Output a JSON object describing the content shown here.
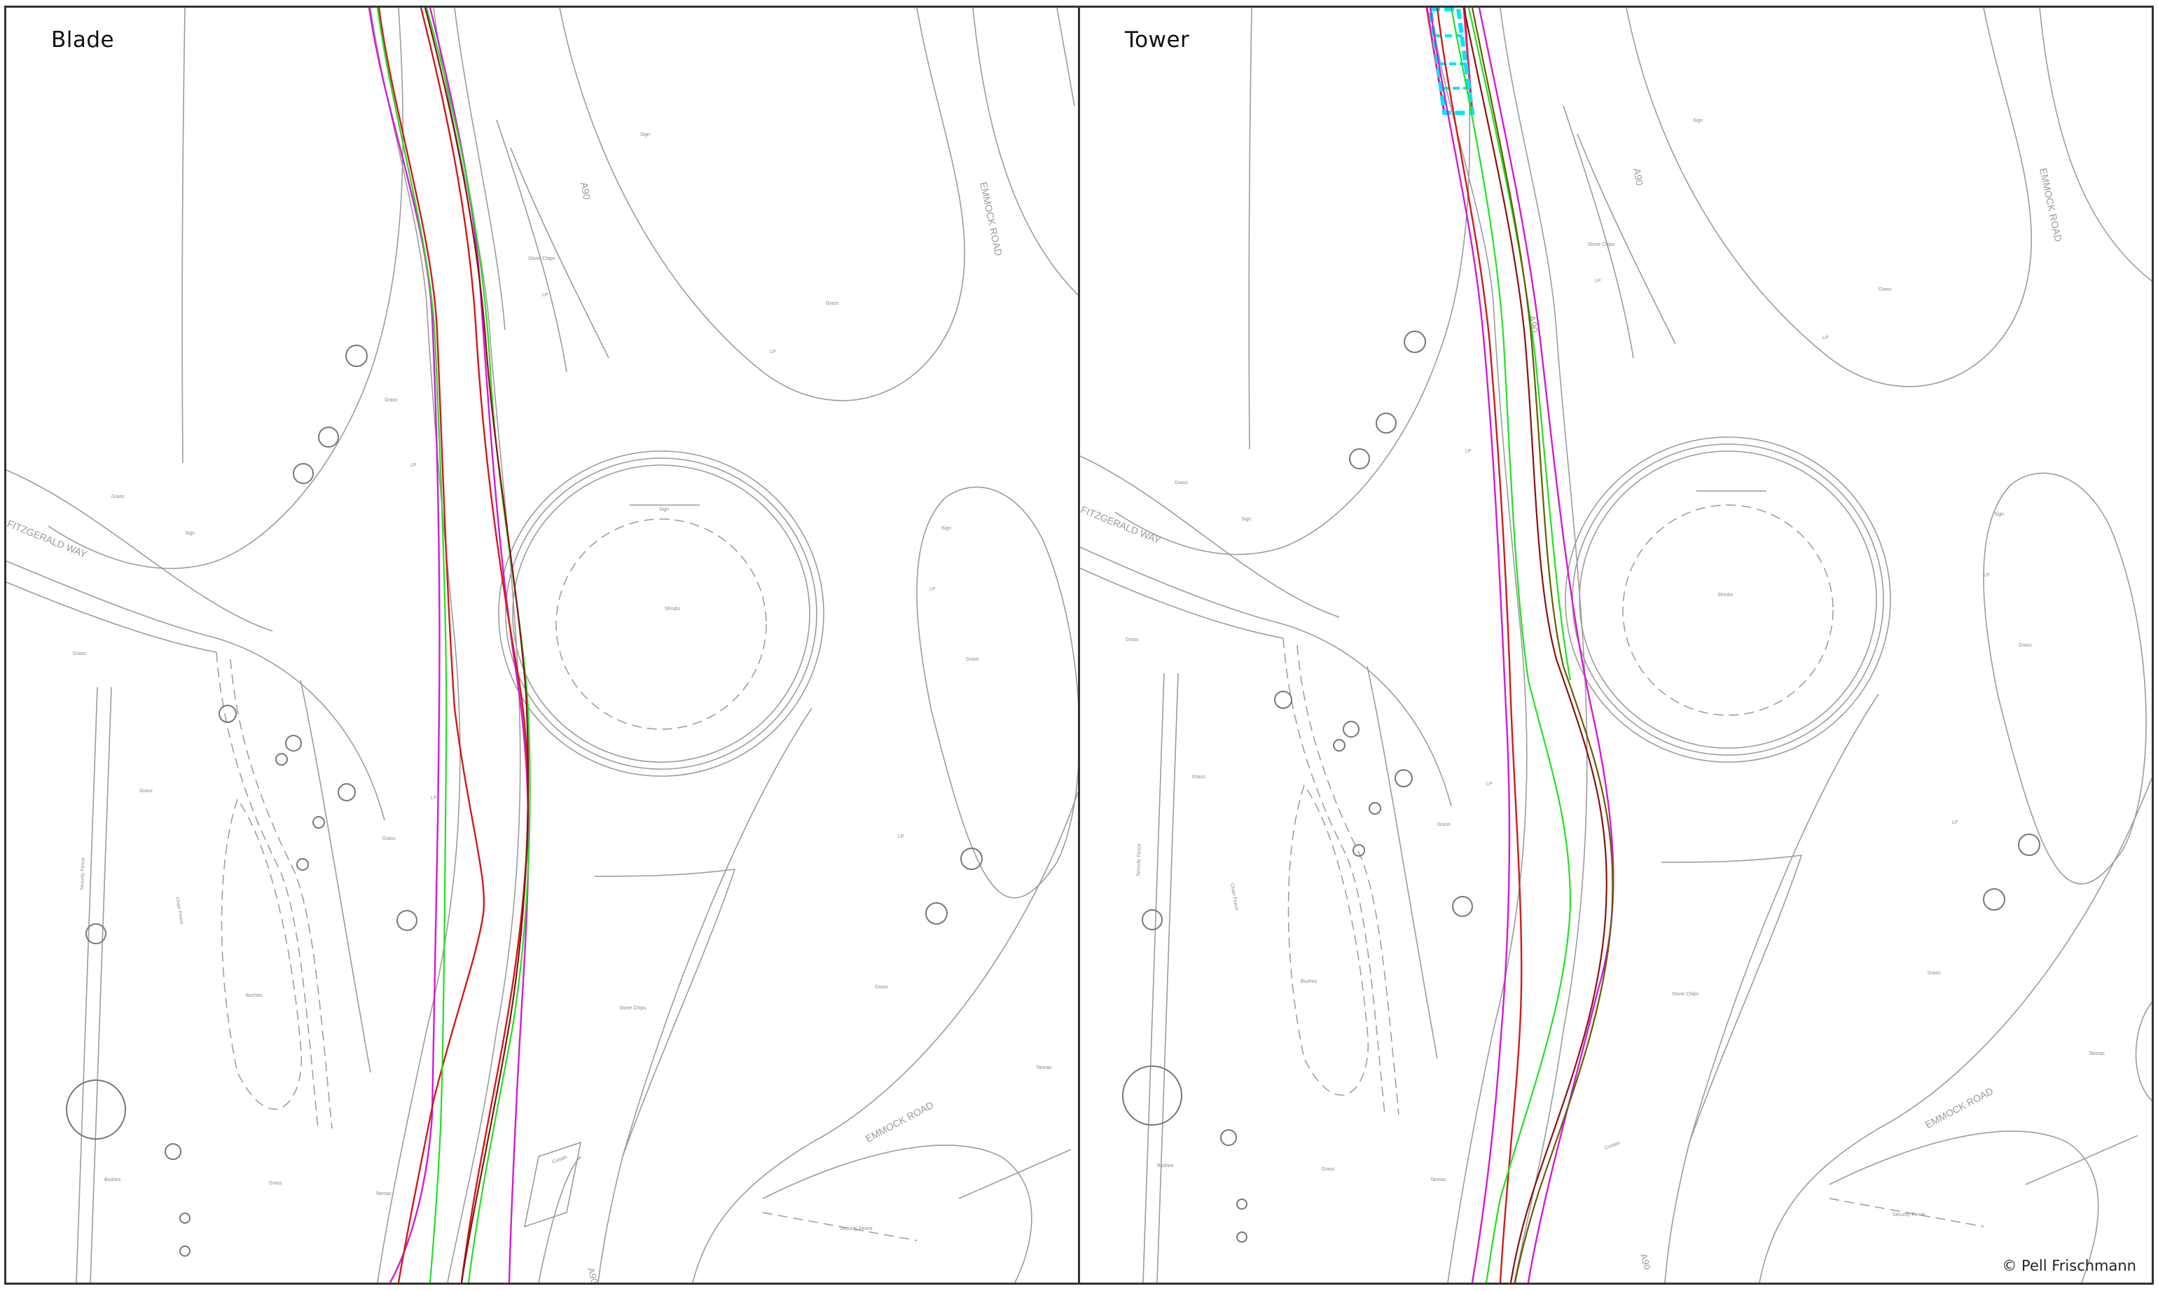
{
  "panels": [
    {
      "id": "left",
      "title": "Blade"
    },
    {
      "id": "right",
      "title": "Tower"
    }
  ],
  "copyright": "© Pell Frischmann",
  "map_labels": {
    "a90": "A90",
    "emmock_road": "EMMOCK ROAD",
    "fitzgerald_way": "FITZGERALD WAY",
    "grass": "Grass",
    "stone_chips": "Stone Chips",
    "shrubs": "Shrubs",
    "bushes": "Bushes",
    "tarmac": "Tarmac",
    "security_fence": "Security Fence",
    "chain_fence": "Chain Fence",
    "curtain": "Curtain",
    "sign": "Sign",
    "lamp_post": "LP"
  },
  "colors": {
    "map_linework": "#9c9c9c",
    "route_red": "#d11a1a",
    "route_magenta": "#d21bd8",
    "route_green": "#22e022",
    "route_darkred": "#8b1010",
    "route_olive": "#6b5a00",
    "vehicle_cyan": "#00e5ff",
    "vehicle_pink": "#e0206a"
  }
}
